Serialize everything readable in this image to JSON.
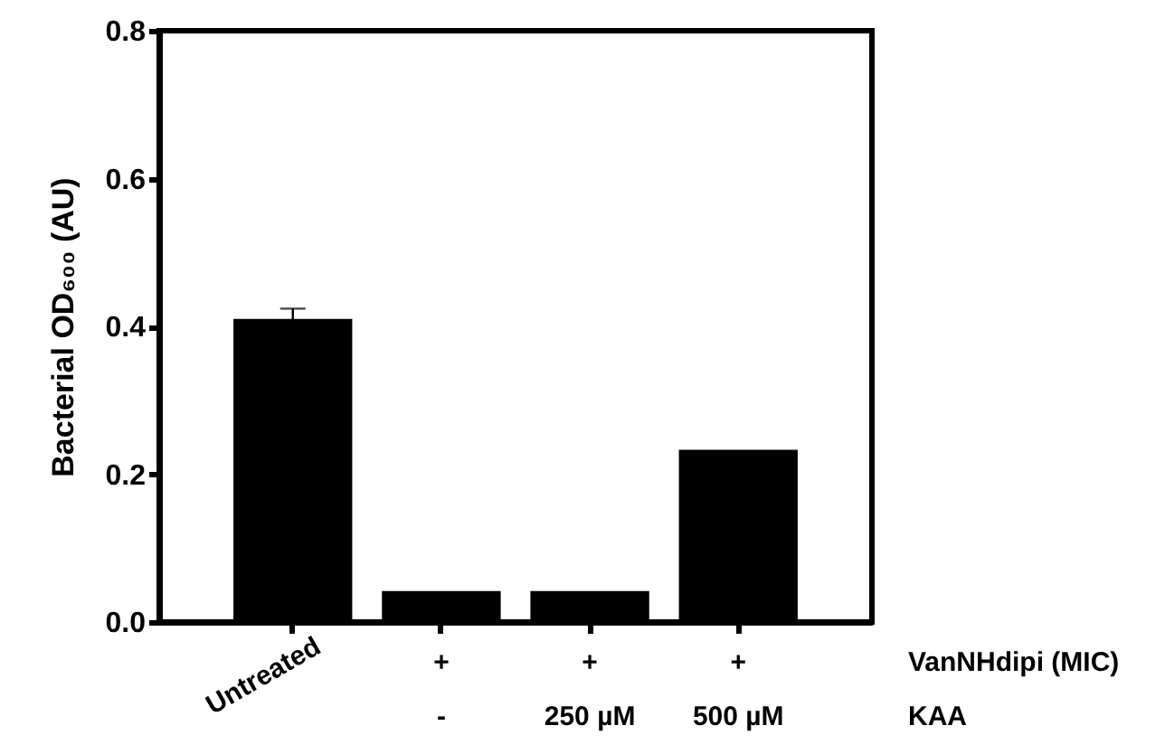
{
  "chart_data": {
    "type": "bar",
    "ylabel": "Bacterial OD₆₀₀ (AU)",
    "categories": [
      "Untreated",
      "+\n-",
      "+\n250 µM",
      "+\n500 µM"
    ],
    "values": [
      0.41,
      0.042,
      0.042,
      0.233
    ],
    "errors": [
      0.014,
      null,
      null,
      null
    ],
    "color": "#000000",
    "ylim": [
      0,
      0.8
    ],
    "yticks": [
      {
        "value": 0,
        "label": "0.0"
      },
      0.2,
      0.4,
      0.6,
      0.8
    ],
    "grid": false,
    "annotations": [
      "VanNHdipi (MIC)",
      "KAA"
    ]
  }
}
